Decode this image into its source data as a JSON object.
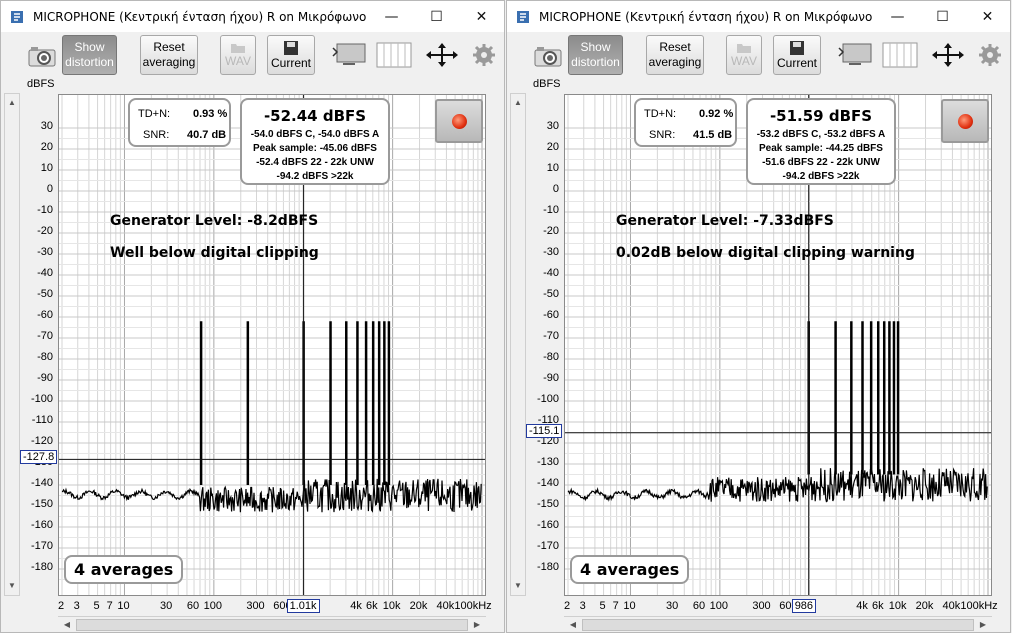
{
  "windows": [
    {
      "title": "MICROPHONE (Κεντρική ένταση ήχου) R on Μικρόφωνο (E-...",
      "controls": {
        "minimize": "—",
        "maximize": "☐",
        "close": "✕"
      },
      "toolbar": {
        "show_distortion": [
          "Show",
          "distortion"
        ],
        "reset_averaging": [
          "Reset",
          "averaging"
        ],
        "wav": "WAV",
        "current": "Current"
      },
      "y_axis_unit": "dBFS",
      "y_ticks": [
        "30",
        "20",
        "10",
        "0",
        "-10",
        "-20",
        "-30",
        "-40",
        "-50",
        "-60",
        "-70",
        "-80",
        "-90",
        "-100",
        "-110",
        "-120",
        "-130",
        "-140",
        "-150",
        "-160",
        "-170",
        "-180"
      ],
      "x_ticks": [
        "2",
        "3",
        "5",
        "7",
        "10",
        "30",
        "60",
        "100",
        "300",
        "600",
        "1k",
        "4k",
        "6k",
        "10k",
        "20k",
        "40k",
        "100kHz"
      ],
      "cursor_y": "-127.8",
      "cursor_x": "1.01k",
      "thd": {
        "td_n_label": "TD+N:",
        "td_n_value": "0.93 %",
        "snr_label": "SNR:",
        "snr_value": "40.7 dB"
      },
      "levels": {
        "main": "-52.44 dBFS",
        "line1": "-54.0 dBFS C, -54.0 dBFS A",
        "line2": "Peak sample: -45.06 dBFS",
        "line3": "-52.4 dBFS 22 - 22k UNW",
        "line4": "-94.2 dBFS >22k"
      },
      "annotation1": "Generator Level: -8.2dBFS",
      "annotation2": "Well below digital clipping",
      "averages": "4 averages",
      "colors": {
        "trace": "#000000",
        "grid": "#c8c8c8",
        "cursor": "#223a9e"
      },
      "chart_data": {
        "type": "line",
        "title": "",
        "xlabel": "",
        "ylabel": "dBFS",
        "xscale": "log",
        "xlim": [
          2,
          100000
        ],
        "ylim": [
          -190,
          35
        ],
        "harmonics_hz": [
          1010,
          2020,
          3030,
          4040,
          5050,
          6060,
          7070,
          8080,
          9090
        ],
        "harmonic_levels_dbfs": [
          -62,
          -62,
          -62,
          -62,
          -62,
          -62,
          -62,
          -62,
          -62
        ],
        "subharmonic_hz": [
          72,
          240
        ],
        "noise_floor_dbfs": -145
      }
    },
    {
      "title": "MICROPHONE (Κεντρική ένταση ήχου) R on Μικρόφωνο (E-...",
      "controls": {
        "minimize": "—",
        "maximize": "☐",
        "close": "✕"
      },
      "toolbar": {
        "show_distortion": [
          "Show",
          "distortion"
        ],
        "reset_averaging": [
          "Reset",
          "averaging"
        ],
        "wav": "WAV",
        "current": "Current"
      },
      "y_axis_unit": "dBFS",
      "y_ticks": [
        "30",
        "20",
        "10",
        "0",
        "-10",
        "-20",
        "-30",
        "-40",
        "-50",
        "-60",
        "-70",
        "-80",
        "-90",
        "-100",
        "-110",
        "-120",
        "-130",
        "-140",
        "-150",
        "-160",
        "-170",
        "-180"
      ],
      "x_ticks": [
        "2",
        "3",
        "5",
        "7",
        "10",
        "30",
        "60",
        "100",
        "300",
        "600",
        "1k",
        "4k",
        "6k",
        "10k",
        "20k",
        "40k",
        "100kHz"
      ],
      "cursor_y": "-115.1",
      "cursor_x": "986",
      "thd": {
        "td_n_label": "TD+N:",
        "td_n_value": "0.92 %",
        "snr_label": "SNR:",
        "snr_value": "41.5 dB"
      },
      "levels": {
        "main": "-51.59 dBFS",
        "line1": "-53.2 dBFS C, -53.2 dBFS A",
        "line2": "Peak sample: -44.25 dBFS",
        "line3": "-51.6 dBFS 22 - 22k UNW",
        "line4": "-94.2 dBFS >22k"
      },
      "annotation1": "Generator Level: -7.33dBFS",
      "annotation2": "0.02dB below digital clipping warning",
      "averages": "4 averages",
      "colors": {
        "trace": "#000000",
        "grid": "#c8c8c8",
        "cursor": "#223a9e"
      },
      "chart_data": {
        "type": "line",
        "title": "",
        "xlabel": "",
        "ylabel": "dBFS",
        "xscale": "log",
        "xlim": [
          2,
          100000
        ],
        "ylim": [
          -190,
          35
        ],
        "harmonics_hz": [
          986,
          1972,
          2958,
          3944,
          4930,
          5916,
          6902,
          7888,
          8874,
          9860
        ],
        "harmonic_levels_dbfs": [
          -62,
          -62,
          -62,
          -62,
          -62,
          -62,
          -62,
          -62,
          -62,
          -62
        ],
        "subharmonic_hz": [],
        "noise_floor_dbfs": -140
      }
    }
  ]
}
